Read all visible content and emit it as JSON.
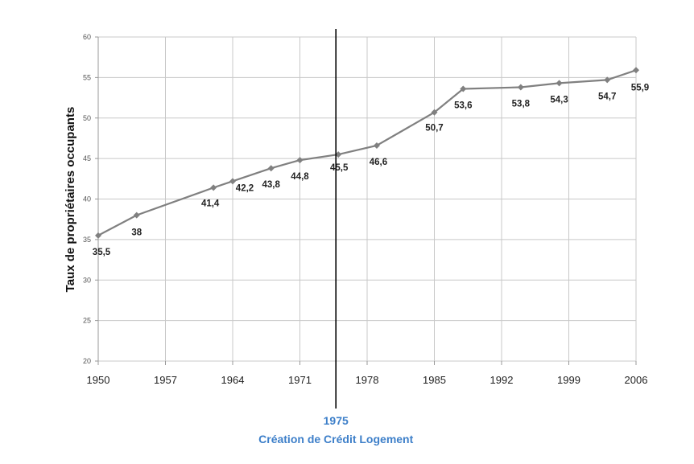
{
  "chart_data": {
    "type": "line",
    "title": "",
    "xlabel": "",
    "ylabel": "Taux de propriétaires occupants",
    "xlim": [
      1950,
      2006
    ],
    "ylim": [
      20,
      60
    ],
    "x_ticks": [
      "1950",
      "1957",
      "1964",
      "1971",
      "1978",
      "1985",
      "1992",
      "1999",
      "2006"
    ],
    "y_ticks": [
      "20",
      "25",
      "30",
      "35",
      "40",
      "45",
      "50",
      "55",
      "60"
    ],
    "grid": true,
    "line_color": "#808080",
    "annotation_color": "#3d7fc9",
    "series": [
      {
        "x": [
          1950,
          1954,
          1962,
          1964,
          1968,
          1971,
          1975,
          1979,
          1985,
          1988,
          1994,
          1998,
          2003,
          2006
        ],
        "values": [
          35.5,
          38,
          41.4,
          42.2,
          43.8,
          44.8,
          45.5,
          46.6,
          50.7,
          53.6,
          53.8,
          54.3,
          54.7,
          55.9
        ],
        "labels": [
          "35,5",
          "38",
          "41,4",
          "42,2",
          "43,8",
          "44,8",
          "45,5",
          "46,6",
          "50,7",
          "53,6",
          "53,8",
          "54,3",
          "54,7",
          "55,9"
        ]
      }
    ],
    "vline": {
      "x": 1975,
      "label_year": "1975",
      "label_text": "Création de Crédit Logement"
    }
  }
}
